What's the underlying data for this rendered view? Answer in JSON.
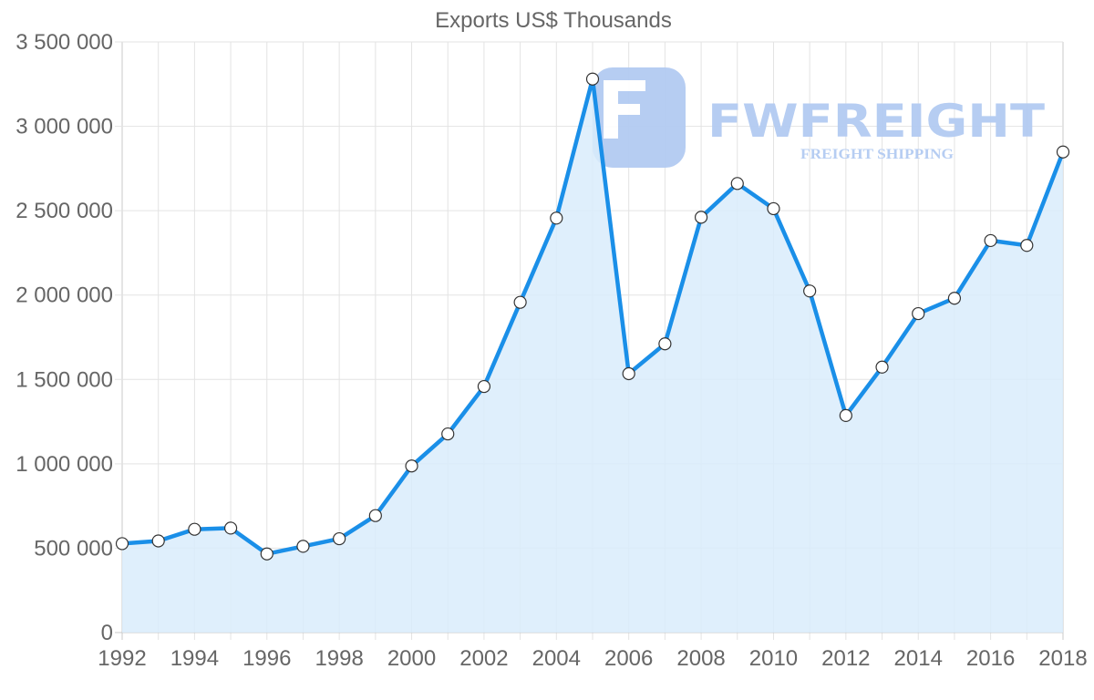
{
  "chart_data": {
    "type": "area",
    "title": "Exports US$ Thousands",
    "xlabel": "",
    "ylabel": "",
    "x": [
      1992,
      1993,
      1994,
      1995,
      1996,
      1997,
      1998,
      1999,
      2000,
      2001,
      2002,
      2003,
      2004,
      2005,
      2006,
      2007,
      2008,
      2009,
      2010,
      2011,
      2012,
      2013,
      2014,
      2015,
      2016,
      2017,
      2018
    ],
    "series": [
      {
        "name": "Exports US$ Thousands",
        "values": [
          527000,
          543000,
          612000,
          619000,
          466000,
          511000,
          556000,
          693000,
          987000,
          1177000,
          1458000,
          1957000,
          2456000,
          3280000,
          1534000,
          1711000,
          2461000,
          2661000,
          2512000,
          2024000,
          1286000,
          1573000,
          1890000,
          1981000,
          2323000,
          2294000,
          2848000
        ]
      }
    ],
    "ylim": [
      0,
      3500000
    ],
    "xlim": [
      1992,
      2018
    ],
    "y_ticks": [
      0,
      500000,
      1000000,
      1500000,
      2000000,
      2500000,
      3000000,
      3500000
    ],
    "y_tick_labels": [
      "0",
      "500 000",
      "1 000 000",
      "1 500 000",
      "2 000 000",
      "2 500 000",
      "3 000 000",
      "3 500 000"
    ],
    "x_tick_labels": [
      "1992",
      "1994",
      "1996",
      "1998",
      "2000",
      "2002",
      "2004",
      "2006",
      "2008",
      "2010",
      "2012",
      "2014",
      "2016",
      "2018"
    ],
    "grid": true,
    "legend": "none"
  },
  "colors": {
    "line": "#1a8fe8",
    "fill": "#d9ecfc",
    "point_fill": "#ffffff",
    "point_stroke": "#333333",
    "watermark": "#b3cbf2"
  },
  "watermark": {
    "brand": "FWFREIGHT",
    "tagline": "FREIGHT SHIPPING",
    "icon": "f-logo-icon"
  }
}
